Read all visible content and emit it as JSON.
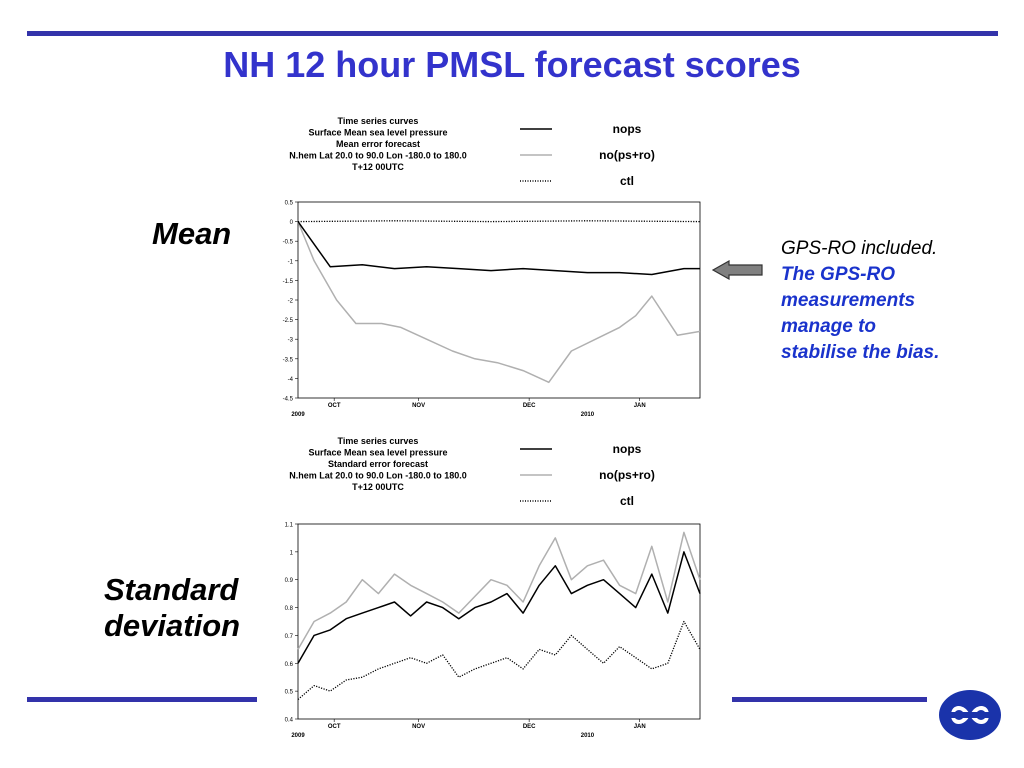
{
  "slide": {
    "title": "NH 12 hour PMSL forecast scores",
    "label_mean": "Mean",
    "label_std_line1": "Standard",
    "label_std_line2": "deviation",
    "annotation_plain": "GPS-RO included.",
    "annotation_bold": [
      "The GPS-RO",
      "measurements",
      "manage to",
      "stabilise the bias."
    ],
    "title_color": "#3333cc",
    "rule_color": "#3333aa",
    "annotation_bold_color": "#1a33cc",
    "logo_color": "#1a33aa"
  },
  "chart_data": [
    {
      "type": "line",
      "header_lines": [
        "Time series curves",
        "Surface Mean sea level pressure",
        "Mean error forecast",
        "N.hem  Lat  20.0 to 90.0 Lon  -180.0 to  180.0",
        "T+12 00UTC"
      ],
      "legend": [
        "nops",
        "no(ps+ro)",
        "ctl"
      ],
      "ylim": [
        -4.5,
        0.5
      ],
      "yticks": [
        "0.5",
        "0",
        "-0.5",
        "-1",
        "-1.5",
        "-2",
        "-2.5",
        "-3",
        "-3.5",
        "-4",
        "-4.5"
      ],
      "month_labels": [
        "OCT",
        "NOV",
        "DEC",
        "JAN"
      ],
      "year_labels": [
        "2009",
        "2010"
      ],
      "xlim_days": [
        0,
        125
      ],
      "series": [
        {
          "name": "nops",
          "color": "#000000",
          "style": "solid",
          "x": [
            0,
            10,
            20,
            30,
            40,
            50,
            60,
            70,
            80,
            90,
            100,
            110,
            120,
            125
          ],
          "values": [
            0.0,
            -1.15,
            -1.1,
            -1.2,
            -1.15,
            -1.2,
            -1.25,
            -1.2,
            -1.25,
            -1.3,
            -1.3,
            -1.35,
            -1.2,
            -1.2
          ]
        },
        {
          "name": "no(ps+ro)",
          "color": "#b0b0b0",
          "style": "solid",
          "x": [
            0,
            5,
            12,
            18,
            26,
            32,
            40,
            48,
            55,
            62,
            70,
            78,
            85,
            95,
            100,
            105,
            110,
            118,
            125
          ],
          "values": [
            0.0,
            -1.0,
            -2.0,
            -2.6,
            -2.6,
            -2.7,
            -3.0,
            -3.3,
            -3.5,
            -3.6,
            -3.8,
            -4.1,
            -3.3,
            -2.9,
            -2.7,
            -2.4,
            -1.9,
            -2.9,
            -2.8
          ]
        },
        {
          "name": "ctl",
          "color": "#000000",
          "style": "dotted",
          "x": [
            0,
            30,
            60,
            90,
            125
          ],
          "values": [
            0.0,
            0.02,
            0.0,
            0.02,
            0.0
          ]
        }
      ]
    },
    {
      "type": "line",
      "header_lines": [
        "Time series curves",
        "Surface Mean sea level pressure",
        "Standard error forecast",
        "N.hem  Lat  20.0 to 90.0 Lon  -180.0 to  180.0",
        "T+12 00UTC"
      ],
      "legend": [
        "nops",
        "no(ps+ro)",
        "ctl"
      ],
      "ylim": [
        0.4,
        1.1
      ],
      "yticks": [
        "1.1",
        "1",
        "0.9",
        "0.8",
        "0.7",
        "0.6",
        "0.5",
        "0.4"
      ],
      "month_labels": [
        "OCT",
        "NOV",
        "DEC",
        "JAN"
      ],
      "year_labels": [
        "2009",
        "2010"
      ],
      "xlim_days": [
        0,
        125
      ],
      "series": [
        {
          "name": "nops",
          "color": "#000000",
          "style": "solid",
          "x": [
            0,
            5,
            10,
            15,
            20,
            25,
            30,
            35,
            40,
            45,
            50,
            55,
            60,
            65,
            70,
            75,
            80,
            85,
            90,
            95,
            100,
            105,
            110,
            115,
            120,
            125
          ],
          "values": [
            0.6,
            0.7,
            0.72,
            0.76,
            0.78,
            0.8,
            0.82,
            0.77,
            0.82,
            0.8,
            0.76,
            0.8,
            0.82,
            0.85,
            0.78,
            0.88,
            0.95,
            0.85,
            0.88,
            0.9,
            0.85,
            0.8,
            0.92,
            0.78,
            1.0,
            0.85
          ]
        },
        {
          "name": "no(ps+ro)",
          "color": "#b0b0b0",
          "style": "solid",
          "x": [
            0,
            5,
            10,
            15,
            20,
            25,
            30,
            35,
            40,
            45,
            50,
            55,
            60,
            65,
            70,
            75,
            80,
            85,
            90,
            95,
            100,
            105,
            110,
            115,
            120,
            125
          ],
          "values": [
            0.65,
            0.75,
            0.78,
            0.82,
            0.9,
            0.85,
            0.92,
            0.88,
            0.85,
            0.82,
            0.78,
            0.84,
            0.9,
            0.88,
            0.82,
            0.95,
            1.05,
            0.9,
            0.95,
            0.97,
            0.88,
            0.85,
            1.02,
            0.82,
            1.07,
            0.9
          ]
        },
        {
          "name": "ctl",
          "color": "#000000",
          "style": "dotted",
          "x": [
            0,
            5,
            10,
            15,
            20,
            25,
            30,
            35,
            40,
            45,
            50,
            55,
            60,
            65,
            70,
            75,
            80,
            85,
            90,
            95,
            100,
            105,
            110,
            115,
            120,
            125
          ],
          "values": [
            0.47,
            0.52,
            0.5,
            0.54,
            0.55,
            0.58,
            0.6,
            0.62,
            0.6,
            0.63,
            0.55,
            0.58,
            0.6,
            0.62,
            0.58,
            0.65,
            0.63,
            0.7,
            0.65,
            0.6,
            0.66,
            0.62,
            0.58,
            0.6,
            0.75,
            0.65
          ]
        }
      ]
    }
  ]
}
